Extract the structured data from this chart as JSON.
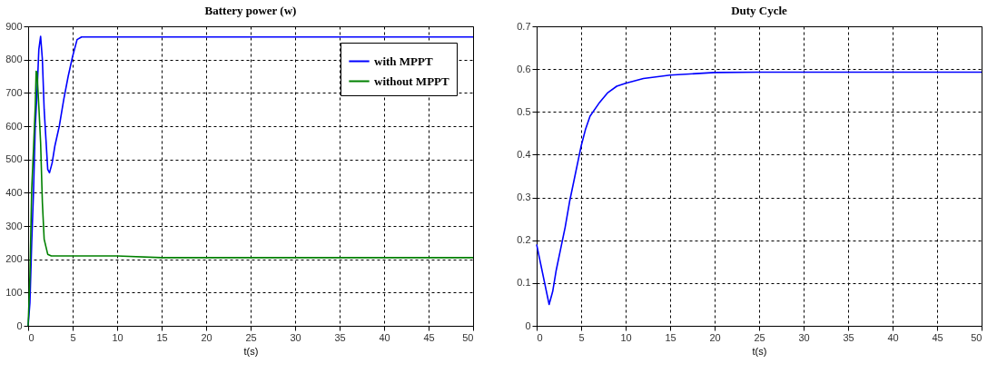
{
  "chart_data": [
    {
      "type": "line",
      "title": "Battery power (w)",
      "xlabel": "t(s)",
      "xlim": [
        0,
        50
      ],
      "xticks": [
        0,
        5,
        10,
        15,
        20,
        25,
        30,
        35,
        40,
        45,
        50
      ],
      "ylim": [
        0,
        900
      ],
      "yticks": [
        0,
        100,
        200,
        300,
        400,
        500,
        600,
        700,
        800,
        900
      ],
      "grid": true,
      "legend": "top right",
      "line_style": "solid",
      "series": [
        {
          "name": "with MPPT",
          "color": "#0000ff",
          "x": [
            0,
            0.2,
            0.4,
            0.6,
            0.8,
            1.0,
            1.2,
            1.4,
            1.6,
            1.8,
            2.0,
            2.2,
            2.4,
            2.7,
            3.0,
            3.5,
            4.0,
            4.5,
            5.0,
            5.5,
            6.0,
            10,
            20,
            30,
            40,
            50
          ],
          "values": [
            0,
            70,
            250,
            400,
            600,
            700,
            830,
            870,
            800,
            650,
            560,
            470,
            460,
            490,
            540,
            600,
            680,
            750,
            810,
            860,
            868,
            868,
            868,
            868,
            868,
            868
          ]
        },
        {
          "name": "without MPPT",
          "color": "#008000",
          "x": [
            0,
            0.2,
            0.4,
            0.6,
            0.8,
            0.9,
            1.0,
            1.2,
            1.4,
            1.6,
            1.8,
            2.2,
            2.6,
            5,
            10,
            15,
            20,
            30,
            40,
            50
          ],
          "values": [
            0,
            150,
            410,
            530,
            660,
            765,
            760,
            660,
            550,
            370,
            260,
            215,
            210,
            210,
            210,
            205,
            205,
            205,
            205,
            205
          ]
        }
      ]
    },
    {
      "type": "line",
      "title": "Duty Cycle",
      "xlabel": "t(s)",
      "xlim": [
        0,
        50
      ],
      "xticks": [
        0,
        5,
        10,
        15,
        20,
        25,
        30,
        35,
        40,
        45,
        50
      ],
      "ylim": [
        0,
        0.7
      ],
      "yticks": [
        0,
        0.1,
        0.2,
        0.3,
        0.4,
        0.5,
        0.6,
        0.7
      ],
      "grid": true,
      "line_style": "solid",
      "series": [
        {
          "color": "#0000ff",
          "x": [
            0,
            0.3,
            0.6,
            0.9,
            1.2,
            1.4,
            1.8,
            2.2,
            2.7,
            3.2,
            3.7,
            4.2,
            4.7,
            5.0,
            5.5,
            6.0,
            7,
            8,
            9,
            10,
            12,
            15,
            20,
            25,
            30,
            40,
            50
          ],
          "values": [
            0.19,
            0.16,
            0.13,
            0.1,
            0.07,
            0.05,
            0.08,
            0.13,
            0.18,
            0.23,
            0.29,
            0.34,
            0.39,
            0.42,
            0.46,
            0.49,
            0.52,
            0.545,
            0.56,
            0.567,
            0.578,
            0.586,
            0.592,
            0.593,
            0.593,
            0.593,
            0.593
          ]
        }
      ]
    }
  ]
}
